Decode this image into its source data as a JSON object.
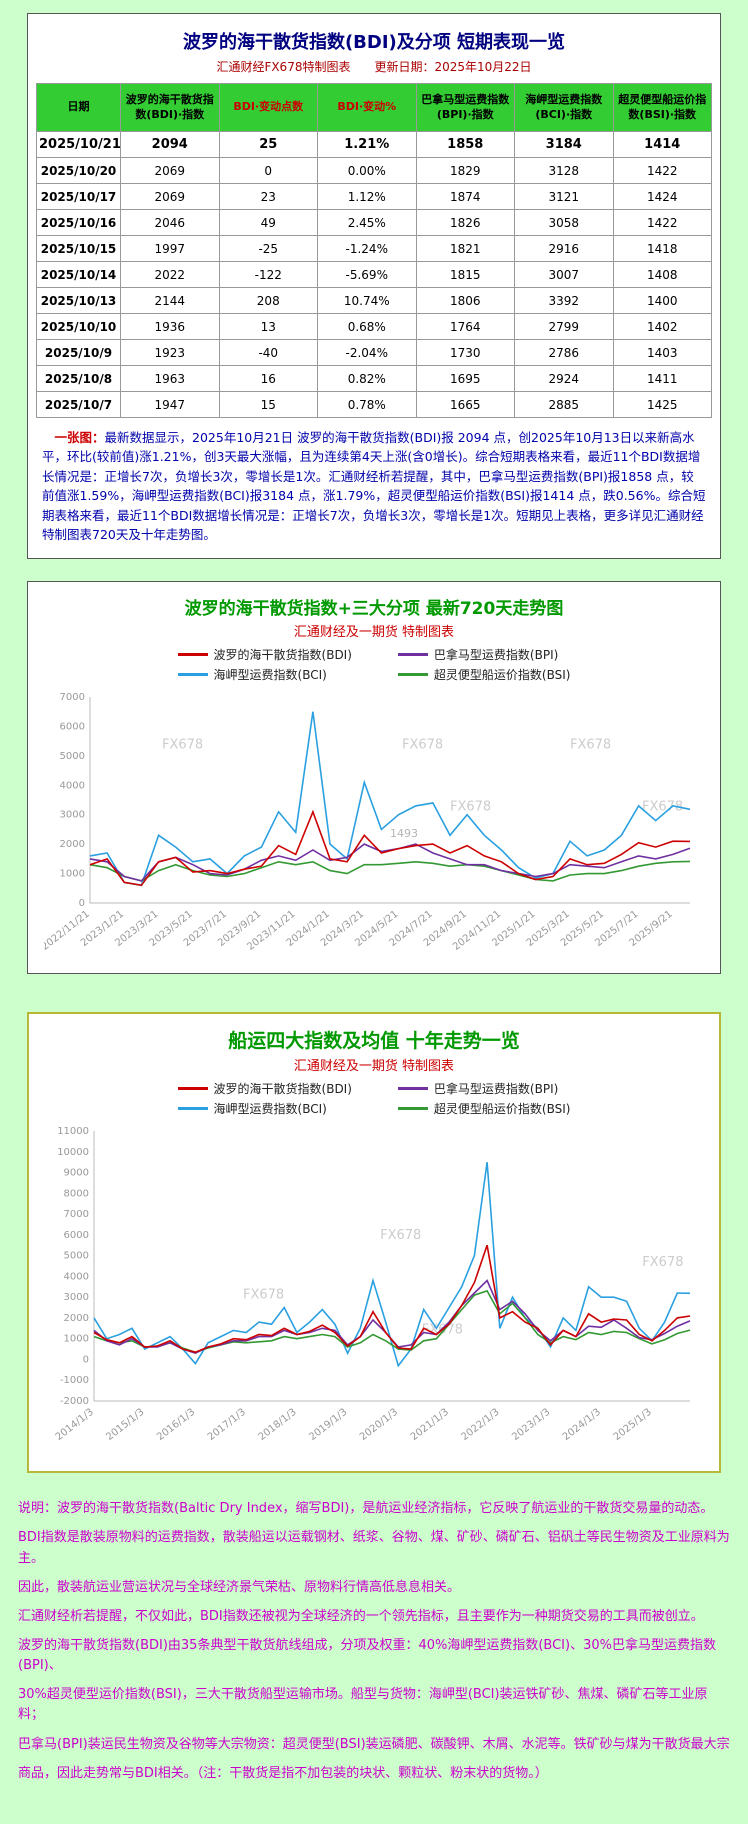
{
  "table_section": {
    "title": "波罗的海干散货指数(BDI)及分项 短期表现一览",
    "subtitle": "汇通财经FX678特制图表　　更新日期：2025年10月22日",
    "columns": [
      "日期",
      "波罗的海干散货指数(BDI)·指数",
      "BDI·变动点数",
      "BDI·变动%",
      "巴拿马型运费指数(BPI)·指数",
      "海岬型运费指数(BCI)·指数",
      "超灵便型船运价指数(BSI)·指数"
    ],
    "red_columns": [
      2,
      3
    ],
    "rows": [
      [
        "2025/10/21",
        "2094",
        "25",
        "1.21%",
        "1858",
        "3184",
        "1414"
      ],
      [
        "2025/10/20",
        "2069",
        "0",
        "0.00%",
        "1829",
        "3128",
        "1422"
      ],
      [
        "2025/10/17",
        "2069",
        "23",
        "1.12%",
        "1874",
        "3121",
        "1424"
      ],
      [
        "2025/10/16",
        "2046",
        "49",
        "2.45%",
        "1826",
        "3058",
        "1422"
      ],
      [
        "2025/10/15",
        "1997",
        "-25",
        "-1.24%",
        "1821",
        "2916",
        "1418"
      ],
      [
        "2025/10/14",
        "2022",
        "-122",
        "-5.69%",
        "1815",
        "3007",
        "1408"
      ],
      [
        "2025/10/13",
        "2144",
        "208",
        "10.74%",
        "1806",
        "3392",
        "1400"
      ],
      [
        "2025/10/10",
        "1936",
        "13",
        "0.68%",
        "1764",
        "2799",
        "1402"
      ],
      [
        "2025/10/9",
        "1923",
        "-40",
        "-2.04%",
        "1730",
        "2786",
        "1403"
      ],
      [
        "2025/10/8",
        "1963",
        "16",
        "0.82%",
        "1695",
        "2924",
        "1411"
      ],
      [
        "2025/10/7",
        "1947",
        "15",
        "0.78%",
        "1665",
        "2885",
        "1425"
      ]
    ],
    "note_prefix": "一张图：",
    "note": "最新数据显示，2025年10月21日 波罗的海干散货指数(BDI)报 2094 点，创2025年10月13日以来新高水平，环比(较前值)涨1.21%，创3天最大涨幅，且为连续第4天上涨(含0增长)。综合短期表格来看，最近11个BDI数据增长情况是：正增长7次，负增长3次，零增长是1次。汇通财经析若提醒，其中，巴拿马型运费指数(BPI)报1858 点，较前值涨1.59%，海岬型运费指数(BCI)报3184 点，涨1.79%，超灵便型船运价指数(BSI)报1414 点，跌0.56%。综合短期表格来看，最近11个BDI数据增长情况是：正增长7次，负增长3次，零增长是1次。短期见上表格，更多详见汇通财经特制图表720天及十年走势图。"
  },
  "chart_data": [
    {
      "type": "line",
      "title": "波罗的海干散货指数+三大分项  最新720天走势图",
      "subtitle": "汇通财经及一期货 特制图表",
      "ylim": [
        0,
        7000
      ],
      "ytick_step": 1000,
      "grid": false,
      "legend_position": "top",
      "x_labels": [
        "2022/11/21",
        "2023/1/21",
        "2023/3/21",
        "2023/5/21",
        "2023/7/21",
        "2023/9/21",
        "2023/11/21",
        "2024/1/21",
        "2024/3/21",
        "2024/5/21",
        "2024/7/21",
        "2024/9/21",
        "2024/11/21",
        "2025/1/21",
        "2025/3/21",
        "2025/5/21",
        "2025/7/21",
        "2025/9/21"
      ],
      "series": [
        {
          "name": "波罗的海干散货指数(BDI)",
          "color": "#cc0000",
          "values": [
            1300,
            1500,
            700,
            600,
            1400,
            1550,
            1050,
            1100,
            1000,
            1150,
            1250,
            1950,
            1650,
            3100,
            1500,
            1400,
            2300,
            1700,
            1850,
            1950,
            2000,
            1700,
            1950,
            1600,
            1400,
            1000,
            800,
            900,
            1500,
            1300,
            1350,
            1650,
            2050,
            1900,
            2100,
            2094
          ]
        },
        {
          "name": "巴拿马型运费指数(BPI)",
          "color": "#7030a0",
          "values": [
            1500,
            1400,
            900,
            750,
            1400,
            1550,
            1300,
            1000,
            950,
            1150,
            1450,
            1600,
            1450,
            1800,
            1450,
            1550,
            2000,
            1750,
            1850,
            2000,
            1700,
            1500,
            1300,
            1300,
            1100,
            1000,
            900,
            1000,
            1300,
            1250,
            1200,
            1400,
            1600,
            1500,
            1650,
            1858
          ]
        },
        {
          "name": "海岬型运费指数(BCI)",
          "color": "#2aa0e0",
          "values": [
            1600,
            1700,
            700,
            600,
            2300,
            1900,
            1400,
            1500,
            1000,
            1600,
            1900,
            3100,
            2400,
            6500,
            2000,
            1500,
            4100,
            2500,
            3000,
            3300,
            3400,
            2300,
            3000,
            2300,
            1800,
            1200,
            850,
            1000,
            2100,
            1600,
            1800,
            2300,
            3300,
            2800,
            3300,
            3184
          ]
        },
        {
          "name": "超灵便型船运价指数(BSI)",
          "color": "#339933",
          "values": [
            1300,
            1200,
            900,
            750,
            1100,
            1300,
            1100,
            950,
            900,
            1000,
            1200,
            1400,
            1300,
            1400,
            1100,
            1000,
            1300,
            1300,
            1350,
            1400,
            1350,
            1250,
            1300,
            1250,
            1100,
            950,
            800,
            750,
            950,
            1000,
            1000,
            1100,
            1250,
            1350,
            1400,
            1414
          ]
        }
      ],
      "watermarks": [
        {
          "x": 0.12,
          "y": 0.25,
          "text": "FX678"
        },
        {
          "x": 0.52,
          "y": 0.25,
          "text": "FX678"
        },
        {
          "x": 0.8,
          "y": 0.25,
          "text": "FX678"
        },
        {
          "x": 0.6,
          "y": 0.55,
          "text": "FX678"
        },
        {
          "x": 0.92,
          "y": 0.55,
          "text": "FX678"
        }
      ],
      "annotations": [
        {
          "x": 0.5,
          "y": 0.68,
          "text": "1493"
        }
      ]
    },
    {
      "type": "line",
      "title": "船运四大指数及均值 十年走势一览",
      "subtitle": "汇通财经及一期货 特制图表",
      "ylim": [
        -2000,
        11000
      ],
      "ytick_step": 1000,
      "grid": false,
      "legend_position": "top",
      "x_labels": [
        "2014/1/3",
        "2015/1/3",
        "2016/1/3",
        "2017/1/3",
        "2018/1/3",
        "2019/1/3",
        "2020/1/3",
        "2021/1/3",
        "2022/1/3",
        "2023/1/3",
        "2024/1/3",
        "2025/1/3"
      ],
      "series": [
        {
          "name": "波罗的海干散货指数(BDI)",
          "color": "#cc0000",
          "values": [
            1300,
            950,
            800,
            1100,
            600,
            650,
            900,
            500,
            350,
            600,
            750,
            1000,
            950,
            1200,
            1150,
            1500,
            1200,
            1350,
            1650,
            1300,
            650,
            1100,
            2300,
            1300,
            550,
            500,
            1500,
            1200,
            1700,
            2600,
            3700,
            5500,
            2000,
            2300,
            1800,
            1500,
            700,
            1400,
            1100,
            2200,
            1800,
            1950,
            1900,
            1200,
            900,
            1400,
            2000,
            2094
          ]
        },
        {
          "name": "巴拿马型运费指数(BPI)",
          "color": "#7030a0",
          "values": [
            1400,
            900,
            700,
            1000,
            600,
            600,
            800,
            500,
            300,
            600,
            700,
            900,
            900,
            1100,
            1100,
            1400,
            1200,
            1300,
            1500,
            1400,
            700,
            1100,
            1900,
            1300,
            600,
            700,
            1300,
            1200,
            1800,
            2600,
            3200,
            3800,
            2400,
            2800,
            2200,
            1400,
            900,
            1400,
            1100,
            1600,
            1550,
            1900,
            1500,
            1050,
            950,
            1250,
            1600,
            1858
          ]
        },
        {
          "name": "海岬型运费指数(BCI)",
          "color": "#2aa0e0",
          "values": [
            2000,
            1000,
            1200,
            1500,
            500,
            800,
            1100,
            500,
            -200,
            800,
            1100,
            1400,
            1300,
            1800,
            1700,
            2500,
            1300,
            1800,
            2400,
            1700,
            300,
            1500,
            3800,
            1800,
            -300,
            500,
            2400,
            1500,
            2500,
            3500,
            5000,
            9500,
            1500,
            3000,
            2000,
            1500,
            600,
            2000,
            1400,
            3500,
            3000,
            3000,
            2800,
            1500,
            900,
            1800,
            3200,
            3184
          ]
        },
        {
          "name": "超灵便型船运价指数(BSI)",
          "color": "#339933",
          "values": [
            1100,
            900,
            800,
            900,
            600,
            650,
            800,
            550,
            350,
            550,
            700,
            850,
            800,
            850,
            900,
            1100,
            1000,
            1100,
            1200,
            1100,
            600,
            800,
            1200,
            900,
            500,
            450,
            900,
            1000,
            1700,
            2400,
            3100,
            3300,
            2200,
            2700,
            2000,
            1200,
            800,
            1100,
            950,
            1300,
            1200,
            1350,
            1300,
            1000,
            750,
            950,
            1250,
            1414
          ]
        }
      ],
      "watermarks": [
        {
          "x": 0.48,
          "y": 0.4,
          "text": "FX678"
        },
        {
          "x": 0.92,
          "y": 0.5,
          "text": "FX678"
        },
        {
          "x": 0.25,
          "y": 0.62,
          "text": "FX678"
        },
        {
          "x": 0.55,
          "y": 0.75,
          "text": "FX678"
        }
      ],
      "annotations": []
    }
  ],
  "footer": {
    "lines": [
      "说明：波罗的海干散货指数(Baltic Dry Index，缩写BDI)，是航运业经济指标，它反映了航运业的干散货交易量的动态。",
      "BDI指数是散装原物料的运费指数，散装船运以运载钢材、纸浆、谷物、煤、矿砂、磷矿石、铝矾土等民生物资及工业原料为主。",
      "因此，散装航运业营运状况与全球经济景气荣枯、原物料行情高低息息相关。",
      "汇通财经析若提醒，不仅如此，BDI指数还被视为全球经济的一个领先指标，且主要作为一种期货交易的工具而被创立。",
      "波罗的海干散货指数(BDI)由35条典型干散货航线组成，分项及权重：40%海岬型运费指数(BCI)、30%巴拿马型运费指数(BPI)、",
      "30%超灵便型运价指数(BSI)，三大干散货船型运输市场。船型与货物：海岬型(BCI)装运铁矿砂、焦煤、磷矿石等工业原料；",
      "巴拿马(BPI)装运民生物资及谷物等大宗物资：超灵便型(BSI)装运磷肥、碳酸钾、木屑、水泥等。铁矿砂与煤为干散货最大宗",
      "商品，因此走势常与BDI相关。（注：干散货是指不加包装的块状、颗粒状、粉末状的货物。）"
    ]
  }
}
